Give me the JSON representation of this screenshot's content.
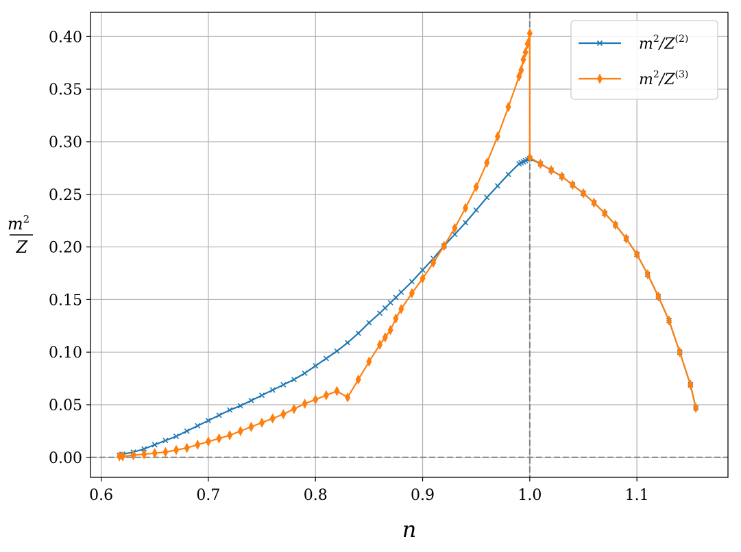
{
  "chart_data": {
    "type": "line",
    "xlabel": "n",
    "ylabel": {
      "numerator": "m",
      "numerator_exp": "2",
      "denominator": "Z"
    },
    "xlim": [
      0.59,
      1.185
    ],
    "ylim": [
      -0.019,
      0.423
    ],
    "xticks": [
      0.6,
      0.7,
      0.8,
      0.9,
      1.0,
      1.1
    ],
    "xtick_labels": [
      "0.6",
      "0.7",
      "0.8",
      "0.9",
      "1.0",
      "1.1"
    ],
    "yticks": [
      0.0,
      0.05,
      0.1,
      0.15,
      0.2,
      0.25,
      0.3,
      0.35,
      0.4
    ],
    "ytick_labels": [
      "0.00",
      "0.05",
      "0.10",
      "0.15",
      "0.20",
      "0.25",
      "0.30",
      "0.35",
      "0.40"
    ],
    "grid": true,
    "legend_position": "top-right",
    "reference_lines": [
      {
        "orientation": "vertical",
        "value": 1.0,
        "style": "dashed",
        "color": "#808080"
      },
      {
        "orientation": "horizontal",
        "value": 0.0,
        "style": "dashed",
        "color": "#808080"
      }
    ],
    "series": [
      {
        "name": "m^2/Z^(2)",
        "legend": {
          "base": "m",
          "exp1": "2",
          "mid": "/Z",
          "exp2": "(2)"
        },
        "color": "#1f77b4",
        "marker": "x",
        "x": [
          0.617,
          0.62,
          0.63,
          0.64,
          0.65,
          0.66,
          0.67,
          0.68,
          0.69,
          0.7,
          0.71,
          0.72,
          0.73,
          0.74,
          0.75,
          0.76,
          0.77,
          0.78,
          0.79,
          0.8,
          0.81,
          0.82,
          0.83,
          0.84,
          0.85,
          0.86,
          0.865,
          0.87,
          0.875,
          0.88,
          0.89,
          0.9,
          0.91,
          0.92,
          0.93,
          0.94,
          0.95,
          0.96,
          0.97,
          0.98,
          0.99,
          0.992,
          0.994,
          0.996,
          0.998,
          1.0,
          1.01,
          1.02,
          1.03,
          1.04,
          1.05,
          1.06,
          1.07,
          1.08,
          1.09,
          1.1,
          1.11,
          1.12,
          1.13,
          1.14,
          1.15,
          1.155
        ],
        "y": [
          0.002,
          0.003,
          0.005,
          0.008,
          0.012,
          0.016,
          0.02,
          0.025,
          0.03,
          0.035,
          0.04,
          0.045,
          0.049,
          0.054,
          0.059,
          0.064,
          0.069,
          0.074,
          0.08,
          0.087,
          0.094,
          0.101,
          0.109,
          0.118,
          0.128,
          0.137,
          0.142,
          0.147,
          0.152,
          0.157,
          0.167,
          0.178,
          0.189,
          0.201,
          0.212,
          0.223,
          0.235,
          0.247,
          0.258,
          0.269,
          0.279,
          0.28,
          0.281,
          0.282,
          0.283,
          0.284,
          0.279,
          0.273,
          0.267,
          0.259,
          0.251,
          0.242,
          0.232,
          0.221,
          0.208,
          0.193,
          0.174,
          0.153,
          0.13,
          0.1,
          0.069,
          0.047
        ]
      },
      {
        "name": "m^2/Z^(3)",
        "legend": {
          "base": "m",
          "exp1": "2",
          "mid": "/Z",
          "exp2": "(3)"
        },
        "color": "#ff7f0e",
        "marker": "thin_diamond",
        "x": [
          0.617,
          0.62,
          0.63,
          0.64,
          0.65,
          0.66,
          0.67,
          0.68,
          0.69,
          0.7,
          0.71,
          0.72,
          0.73,
          0.74,
          0.75,
          0.76,
          0.77,
          0.78,
          0.79,
          0.8,
          0.81,
          0.82,
          0.83,
          0.84,
          0.85,
          0.86,
          0.865,
          0.87,
          0.875,
          0.88,
          0.89,
          0.9,
          0.91,
          0.92,
          0.93,
          0.94,
          0.95,
          0.96,
          0.97,
          0.98,
          0.99,
          0.992,
          0.994,
          0.996,
          0.998,
          1.0,
          1.0,
          1.01,
          1.02,
          1.03,
          1.04,
          1.05,
          1.06,
          1.07,
          1.08,
          1.09,
          1.1,
          1.11,
          1.12,
          1.13,
          1.14,
          1.15,
          1.155
        ],
        "y": [
          0.001,
          0.001,
          0.002,
          0.003,
          0.004,
          0.005,
          0.007,
          0.009,
          0.012,
          0.015,
          0.018,
          0.021,
          0.025,
          0.029,
          0.033,
          0.037,
          0.041,
          0.046,
          0.051,
          0.055,
          0.059,
          0.063,
          0.057,
          0.074,
          0.091,
          0.107,
          0.114,
          0.121,
          0.132,
          0.141,
          0.156,
          0.17,
          0.185,
          0.201,
          0.218,
          0.237,
          0.257,
          0.28,
          0.305,
          0.333,
          0.362,
          0.368,
          0.378,
          0.385,
          0.393,
          0.403,
          0.285,
          0.279,
          0.273,
          0.267,
          0.259,
          0.251,
          0.242,
          0.232,
          0.221,
          0.208,
          0.193,
          0.174,
          0.153,
          0.13,
          0.1,
          0.069,
          0.047
        ]
      }
    ]
  }
}
